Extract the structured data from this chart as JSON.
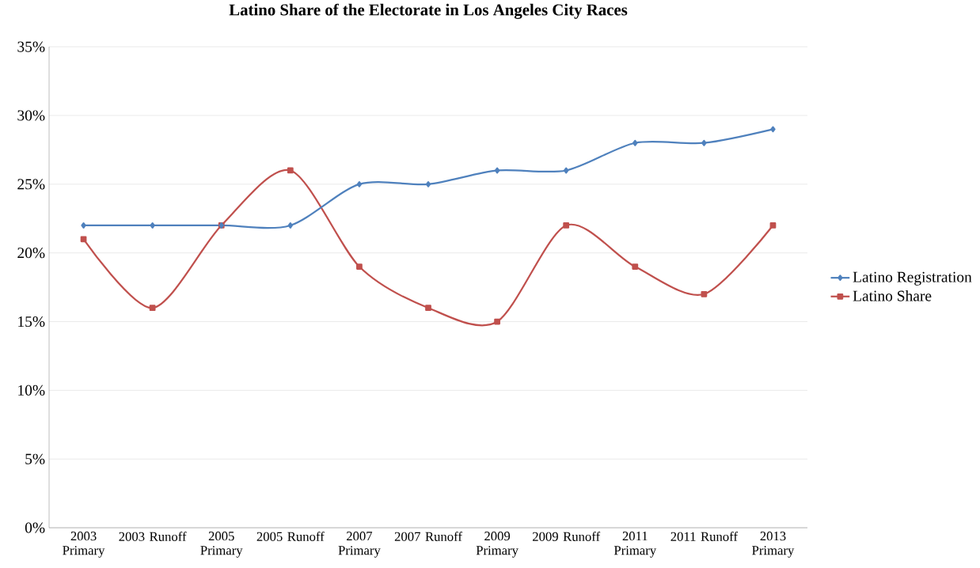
{
  "chart_data": {
    "type": "line",
    "title": "Latino Share of the Electorate in Los Angeles City Races",
    "categories": [
      "2003 Primary",
      "2003 Runoff",
      "2005 Primary",
      "2005 Runoff",
      "2007 Primary",
      "2007 Runoff",
      "2009 Primary",
      "2009 Runoff",
      "2011 Primary",
      "2011 Runoff",
      "2013 Primary"
    ],
    "series": [
      {
        "name": "Latino Registration",
        "color": "#4f81bd",
        "marker": "diamond",
        "values": [
          22,
          22,
          22,
          22,
          25,
          25,
          26,
          26,
          28,
          28,
          29
        ]
      },
      {
        "name": "Latino Share",
        "color": "#c0504d",
        "marker": "square",
        "values": [
          21,
          16,
          22,
          26,
          19,
          16,
          15,
          22,
          19,
          17,
          22
        ]
      }
    ],
    "ylim": [
      0,
      35
    ],
    "yticks": [
      {
        "value": 0,
        "label": "0%"
      },
      {
        "value": 5,
        "label": "5%"
      },
      {
        "value": 10,
        "label": "10%"
      },
      {
        "value": 15,
        "label": "15%"
      },
      {
        "value": 20,
        "label": "20%"
      },
      {
        "value": 25,
        "label": "25%"
      },
      {
        "value": 30,
        "label": "30%"
      },
      {
        "value": 35,
        "label": "35%"
      }
    ],
    "grid": "y",
    "legend": "right",
    "line_style": "solid"
  }
}
